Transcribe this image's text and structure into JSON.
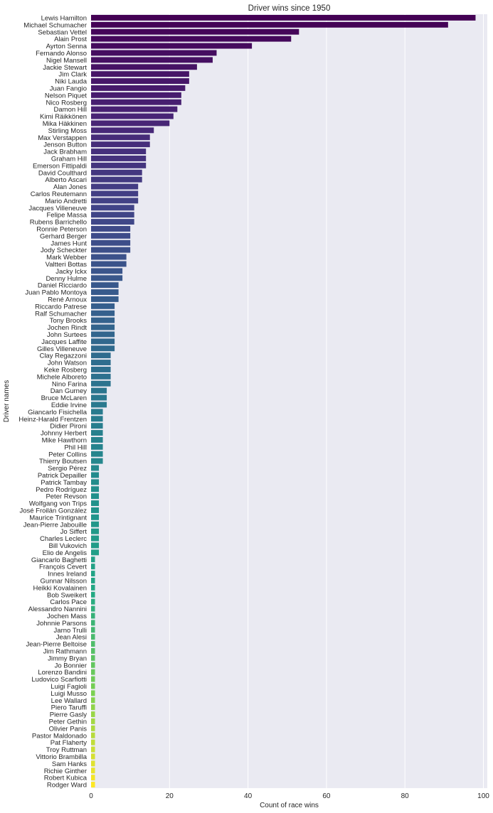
{
  "chart_data": {
    "type": "bar",
    "orientation": "horizontal",
    "title": "Driver wins since 1950",
    "xlabel": "Count of race wins",
    "ylabel": "Driver names",
    "xlim": [
      0,
      101
    ],
    "xticks": [
      0,
      20,
      40,
      60,
      80,
      100
    ],
    "grid": true,
    "colormap": "viridis",
    "categories": [
      "Lewis Hamilton",
      "Michael Schumacher",
      "Sebastian Vettel",
      "Alain Prost",
      "Ayrton Senna",
      "Fernando Alonso",
      "Nigel Mansell",
      "Jackie Stewart",
      "Jim Clark",
      "Niki Lauda",
      "Juan Fangio",
      "Nelson Piquet",
      "Nico Rosberg",
      "Damon Hill",
      "Kimi Räikkönen",
      "Mika Häkkinen",
      "Stirling Moss",
      "Max Verstappen",
      "Jenson Button",
      "Jack Brabham",
      "Graham Hill",
      "Emerson Fittipaldi",
      "David Coulthard",
      "Alberto Ascari",
      "Alan Jones",
      "Carlos Reutemann",
      "Mario Andretti",
      "Jacques Villeneuve",
      "Felipe Massa",
      "Rubens Barrichello",
      "Ronnie Peterson",
      "Gerhard Berger",
      "James Hunt",
      "Jody Scheckter",
      "Mark Webber",
      "Valtteri Bottas",
      "Jacky Ickx",
      "Denny Hulme",
      "Daniel Ricciardo",
      "Juan Pablo Montoya",
      "René Arnoux",
      "Riccardo Patrese",
      "Ralf Schumacher",
      "Tony Brooks",
      "Jochen Rindt",
      "John Surtees",
      "Jacques Laffite",
      "Gilles Villeneuve",
      "Clay Regazzoni",
      "John Watson",
      "Keke Rosberg",
      "Michele Alboreto",
      "Nino Farina",
      "Dan Gurney",
      "Bruce McLaren",
      "Eddie Irvine",
      "Giancarlo Fisichella",
      "Heinz-Harald Frentzen",
      "Didier Pironi",
      "Johnny Herbert",
      "Mike Hawthorn",
      "Phil Hill",
      "Peter Collins",
      "Thierry Boutsen",
      "Sergio Pérez",
      "Patrick Depailler",
      "Patrick Tambay",
      "Pedro Rodríguez",
      "Peter Revson",
      "Wolfgang von Trips",
      "José Froilán González",
      "Maurice Trintignant",
      "Jean-Pierre Jabouille",
      "Jo Siffert",
      "Charles Leclerc",
      "Bill Vukovich",
      "Elio de Angelis",
      "Giancarlo Baghetti",
      "François Cevert",
      "Innes Ireland",
      "Gunnar Nilsson",
      "Heikki Kovalainen",
      "Bob Sweikert",
      "Carlos Pace",
      "Alessandro Nannini",
      "Jochen Mass",
      "Johnnie Parsons",
      "Jarno Trulli",
      "Jean Alesi",
      "Jean-Pierre Beltoise",
      "Jim Rathmann",
      "Jimmy Bryan",
      "Jo Bonnier",
      "Lorenzo Bandini",
      "Ludovico Scarfiotti",
      "Luigi Fagioli",
      "Luigi Musso",
      "Lee Wallard",
      "Piero Taruffi",
      "Pierre Gasly",
      "Peter Gethin",
      "Olivier Panis",
      "Pastor Maldonado",
      "Pat Flaherty",
      "Troy Ruttman",
      "Vittorio Brambilla",
      "Sam Hanks",
      "Richie Ginther",
      "Robert Kubica",
      "Rodger Ward"
    ],
    "values": [
      98,
      91,
      53,
      51,
      41,
      32,
      31,
      27,
      25,
      25,
      24,
      23,
      23,
      22,
      21,
      20,
      16,
      15,
      15,
      14,
      14,
      14,
      13,
      13,
      12,
      12,
      12,
      11,
      11,
      11,
      10,
      10,
      10,
      10,
      9,
      9,
      8,
      8,
      7,
      7,
      7,
      6,
      6,
      6,
      6,
      6,
      6,
      6,
      5,
      5,
      5,
      5,
      5,
      4,
      4,
      4,
      3,
      3,
      3,
      3,
      3,
      3,
      3,
      3,
      2,
      2,
      2,
      2,
      2,
      2,
      2,
      2,
      2,
      2,
      2,
      2,
      2,
      1,
      1,
      1,
      1,
      1,
      1,
      1,
      1,
      1,
      1,
      1,
      1,
      1,
      1,
      1,
      1,
      1,
      1,
      1,
      1,
      1,
      1,
      1,
      1,
      1,
      1,
      1,
      1,
      1,
      1,
      1,
      1,
      1
    ]
  },
  "colors": {
    "plot_background": "#eaeaf2",
    "grid": "#ffffff",
    "text": "#262626"
  }
}
